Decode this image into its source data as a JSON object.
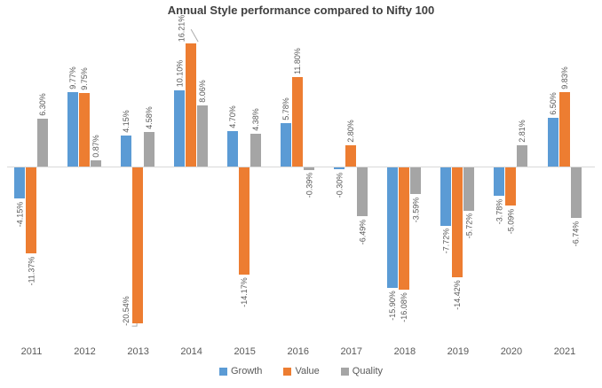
{
  "chart_data": {
    "type": "bar",
    "title": "Annual Style performance compared to Nifty 100",
    "categories": [
      "2011",
      "2012",
      "2013",
      "2014",
      "2015",
      "2016",
      "2017",
      "2018",
      "2019",
      "2020",
      "2021"
    ],
    "series": [
      {
        "name": "Growth",
        "color": "#5B9BD5",
        "values": [
          -4.15,
          9.77,
          4.15,
          10.1,
          4.7,
          5.78,
          -0.3,
          -15.9,
          -7.72,
          -3.78,
          6.5
        ]
      },
      {
        "name": "Value",
        "color": "#ED7D31",
        "values": [
          -11.37,
          9.75,
          -20.54,
          16.21,
          -14.17,
          11.8,
          2.8,
          -16.08,
          -14.42,
          -5.09,
          9.83
        ]
      },
      {
        "name": "Quality",
        "color": "#A5A5A5",
        "values": [
          6.3,
          0.87,
          4.58,
          8.06,
          4.38,
          -0.39,
          -6.49,
          -3.59,
          -5.72,
          2.81,
          -6.74
        ]
      }
    ],
    "data_labels": {
      "Growth": [
        "-4.15%",
        "9.77%",
        "4.15%",
        "10.10%",
        "4.70%",
        "5.78%",
        "-0.30%",
        "-15.90%",
        "-7.72%",
        "-3.78%",
        "6.50%"
      ],
      "Value": [
        "-11.37%",
        "9.75%",
        "-20.54%",
        "16.21%",
        "-14.17%",
        "11.80%",
        "2.80%",
        "-16.08%",
        "-14.42%",
        "-5.09%",
        "9.83%"
      ],
      "Quality": [
        "6.30%",
        "0.87%",
        "4.58%",
        "8.06%",
        "4.38%",
        "-0.39%",
        "-6.49%",
        "-3.59%",
        "-5.72%",
        "2.81%",
        "-6.74%"
      ]
    },
    "callouts": [
      {
        "category": "2013",
        "series": "Value"
      },
      {
        "category": "2014",
        "series": "Value"
      }
    ],
    "legend": [
      "Growth",
      "Value",
      "Quality"
    ],
    "legend_position": "bottom",
    "gridlines": false,
    "y_axis_visible": false,
    "colors": {
      "axis_line": "#d9d9d9",
      "data_label_text": "#595959",
      "axis_label_text": "#595959",
      "title_text": "#404040",
      "leader_line": "#acacac"
    }
  }
}
